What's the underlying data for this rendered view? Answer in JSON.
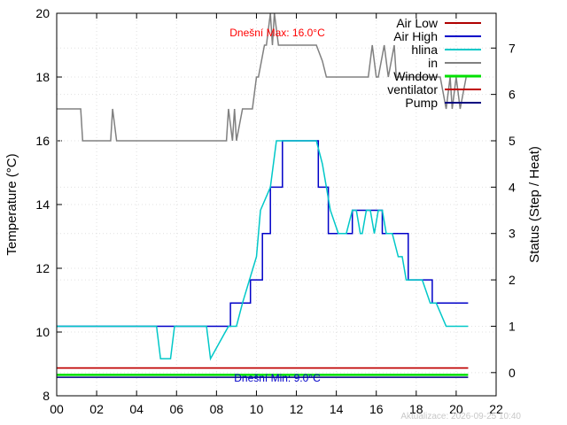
{
  "chart_data": {
    "type": "line",
    "ylabel": "Temperature (°C)",
    "y2label": "Status (Step / Heat)",
    "xlim": [
      0,
      22
    ],
    "ylim": [
      8,
      20
    ],
    "y2lim": [
      -0.5,
      7.75
    ],
    "x_ticks": [
      "00",
      "02",
      "04",
      "06",
      "08",
      "10",
      "12",
      "14",
      "16",
      "18",
      "20",
      "22"
    ],
    "y_ticks": [
      8,
      10,
      12,
      14,
      16,
      18,
      20
    ],
    "y2_ticks": [
      0,
      1,
      2,
      3,
      4,
      5,
      6,
      7
    ],
    "grid": true,
    "legend_position": "top-right",
    "series": [
      {
        "name": "Air Low",
        "color": "#b00000",
        "axis": "y2",
        "x": [
          0,
          20.6
        ],
        "y": [
          0.1,
          0.1
        ]
      },
      {
        "name": "Air High",
        "color": "#0000c8",
        "axis": "y2",
        "x": [
          0,
          5.0,
          5.0,
          7.7,
          7.7,
          8.7,
          8.7,
          9.7,
          9.7,
          10.3,
          10.3,
          10.7,
          10.7,
          11.3,
          11.3,
          13.1,
          13.1,
          13.6,
          13.6,
          14.1,
          14.1,
          14.8,
          14.8,
          16.3,
          16.3,
          16.9,
          16.9,
          17.6,
          17.6,
          18.8,
          18.8,
          19.2,
          19.2,
          20.6
        ],
        "y": [
          1.0,
          1.0,
          1.0,
          1.0,
          1.0,
          1.0,
          1.5,
          1.5,
          2.0,
          2.0,
          3.0,
          3.0,
          4.0,
          4.0,
          5.0,
          5.0,
          4.0,
          4.0,
          3.0,
          3.0,
          3.0,
          3.0,
          3.5,
          3.5,
          3.0,
          3.0,
          3.0,
          3.0,
          2.0,
          2.0,
          1.5,
          1.5,
          1.5,
          1.5
        ]
      },
      {
        "name": "hlina",
        "color": "#00c8c8",
        "axis": "y2",
        "x": [
          0,
          5.0,
          5.2,
          5.7,
          5.9,
          7.5,
          7.7,
          8.6,
          9.0,
          9.3,
          10.0,
          10.2,
          10.7,
          11.0,
          11.8,
          13.0,
          13.3,
          13.7,
          14.1,
          14.5,
          14.8,
          15.0,
          15.2,
          15.3,
          15.5,
          15.7,
          15.9,
          16.1,
          16.3,
          16.5,
          16.8,
          17.1,
          17.3,
          17.5,
          18.3,
          18.7,
          19.0,
          19.5,
          19.8,
          20.6
        ],
        "y": [
          1.0,
          1.0,
          0.3,
          0.3,
          1.0,
          1.0,
          0.3,
          1.0,
          1.0,
          1.5,
          2.5,
          3.5,
          4.0,
          5.0,
          5.0,
          5.0,
          4.5,
          3.5,
          3.0,
          3.0,
          3.5,
          3.5,
          3.0,
          3.0,
          3.5,
          3.5,
          3.0,
          3.5,
          3.5,
          3.0,
          3.0,
          2.5,
          2.5,
          2.0,
          2.0,
          1.5,
          1.5,
          1.0,
          1.0,
          1.0
        ]
      },
      {
        "name": "in",
        "color": "#808080",
        "axis": "y",
        "x": [
          0,
          1.2,
          1.3,
          2.7,
          2.8,
          3.0,
          3.1,
          4.0,
          8.5,
          8.6,
          8.8,
          8.9,
          9.0,
          9.3,
          9.4,
          9.8,
          10.0,
          10.1,
          10.4,
          10.5,
          10.7,
          10.8,
          10.9,
          11.1,
          11.3,
          11.6,
          12.0,
          13.0,
          13.3,
          13.5,
          14.8,
          15.1,
          15.6,
          15.8,
          16.0,
          16.1,
          16.4,
          16.6,
          16.9,
          17.0,
          17.1,
          17.3,
          17.4,
          18.4,
          18.6,
          19.0,
          19.2,
          19.5,
          19.7,
          19.8,
          20.0,
          20.2,
          20.5
        ],
        "y": [
          17.0,
          17.0,
          16.0,
          16.0,
          17.0,
          16.0,
          16.0,
          16.0,
          16.0,
          17.0,
          16.0,
          17.0,
          16.0,
          17.0,
          17.0,
          17.0,
          18.0,
          18.0,
          19.0,
          19.0,
          20.0,
          19.0,
          20.0,
          19.0,
          19.0,
          19.0,
          19.0,
          19.0,
          18.5,
          18.0,
          18.0,
          18.0,
          18.0,
          19.0,
          18.0,
          18.0,
          19.0,
          18.0,
          19.0,
          18.0,
          18.0,
          18.0,
          18.0,
          18.0,
          18.0,
          18.0,
          18.0,
          17.0,
          18.0,
          17.0,
          18.0,
          17.0,
          18.0
        ]
      },
      {
        "name": "Window",
        "color": "#00e000",
        "axis": "y2",
        "x": [
          0,
          20.6
        ],
        "y": [
          -0.05,
          -0.05
        ]
      },
      {
        "name": "ventilator",
        "color": "#c00000",
        "axis": "y2",
        "x": [
          0,
          20.6
        ],
        "y": [
          0.1,
          0.1
        ]
      },
      {
        "name": "Pump",
        "color": "#000080",
        "axis": "y2",
        "x": [
          0,
          20.6
        ],
        "y": [
          -0.1,
          -0.1
        ]
      }
    ],
    "annotations": {
      "max_text": "Dnešní Max: 16.0°C",
      "max_color": "#ff0000",
      "min_text": "Dnešní Min: 9.0°C",
      "min_color": "#0000c8"
    },
    "timestamp": "Aktualizace: 2026-09-25 10:40"
  }
}
